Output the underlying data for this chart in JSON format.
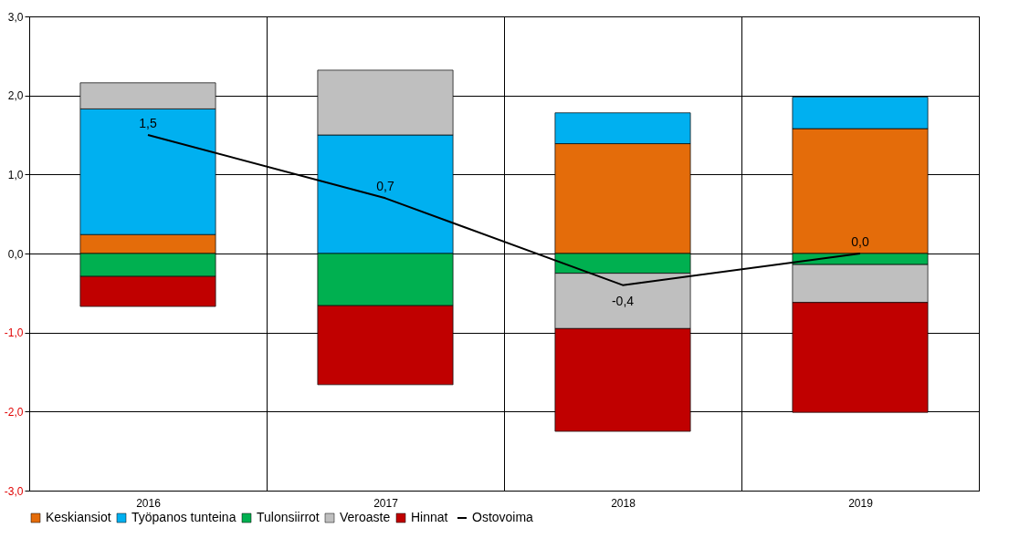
{
  "chart_data": {
    "type": "bar",
    "stacked": true,
    "categories": [
      "2016",
      "2017",
      "2018",
      "2019"
    ],
    "ylim": [
      -3,
      3
    ],
    "yticks": [
      {
        "value": -3,
        "label": "-3,0"
      },
      {
        "value": -2,
        "label": "-2,0"
      },
      {
        "value": -1,
        "label": "-1,0"
      },
      {
        "value": 0,
        "label": "0,0"
      },
      {
        "value": 1,
        "label": "1,0"
      },
      {
        "value": 2,
        "label": "2,0"
      },
      {
        "value": 3,
        "label": "3,0"
      }
    ],
    "grid": true,
    "legend": "bottom",
    "series": [
      {
        "name": "Keskiansiot",
        "color": "#e46c0a",
        "values": [
          0.24,
          0,
          1.39,
          1.58
        ]
      },
      {
        "name": "Työpanos tunteina",
        "color": "#00b0f0",
        "values": [
          1.59,
          1.5,
          0.39,
          0.4
        ]
      },
      {
        "name": "Tulonsiirrot",
        "color": "#00b050",
        "values": [
          -0.29,
          -0.66,
          -0.25,
          -0.14
        ]
      },
      {
        "name": "Veroaste",
        "color": "#bfbfbf",
        "values": [
          0.33,
          0.82,
          -0.7,
          -0.48
        ]
      },
      {
        "name": "Hinnat",
        "color": "#c00000",
        "values": [
          -0.38,
          -1.0,
          -1.3,
          -1.39
        ]
      },
      {
        "name": "Ostovoima",
        "color": "#000000",
        "type": "line",
        "values": [
          1.5,
          0.7,
          -0.4,
          0.0
        ],
        "value_labels": [
          "1,5",
          "0,7",
          "-0,4",
          "0,0"
        ]
      }
    ]
  }
}
